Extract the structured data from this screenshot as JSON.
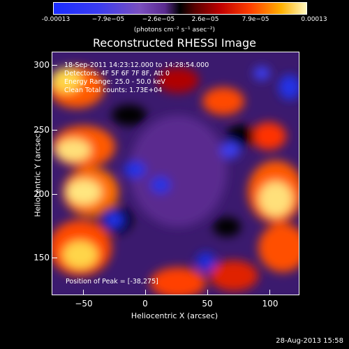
{
  "colorbar": {
    "ticks": [
      "-0.00013",
      "−7.9e−05",
      "−2.6e−05",
      "2.6e−05",
      "7.9e−05",
      "0.00013"
    ],
    "units": "(photons cm⁻² s⁻¹ asec⁻²)"
  },
  "plot": {
    "title": "Reconstructed RHESSI Image",
    "xlabel": "Heliocentric X (arcsec)",
    "ylabel": "Heliocentric Y (arcsec)",
    "xticks": [
      "−50",
      "0",
      "50",
      "100"
    ],
    "yticks": [
      "300",
      "250",
      "200",
      "150"
    ]
  },
  "info": {
    "line1": "18-Sep-2011 14:23:12.000 to 14:28:54.000",
    "line2": "Detectors: 4F 5F 6F 7F 8F, Att 0",
    "line3": "Energy Range: 25.0 - 50.0 keV",
    "line4": "Clean  Total counts: 1.73E+04",
    "peak": "Position of Peak = [-38,275]"
  },
  "timestamp": "28-Aug-2013 15:58",
  "colors": {
    "low": "#2433e6",
    "mid": "#5a2a8f",
    "high": "#ffd54a"
  }
}
